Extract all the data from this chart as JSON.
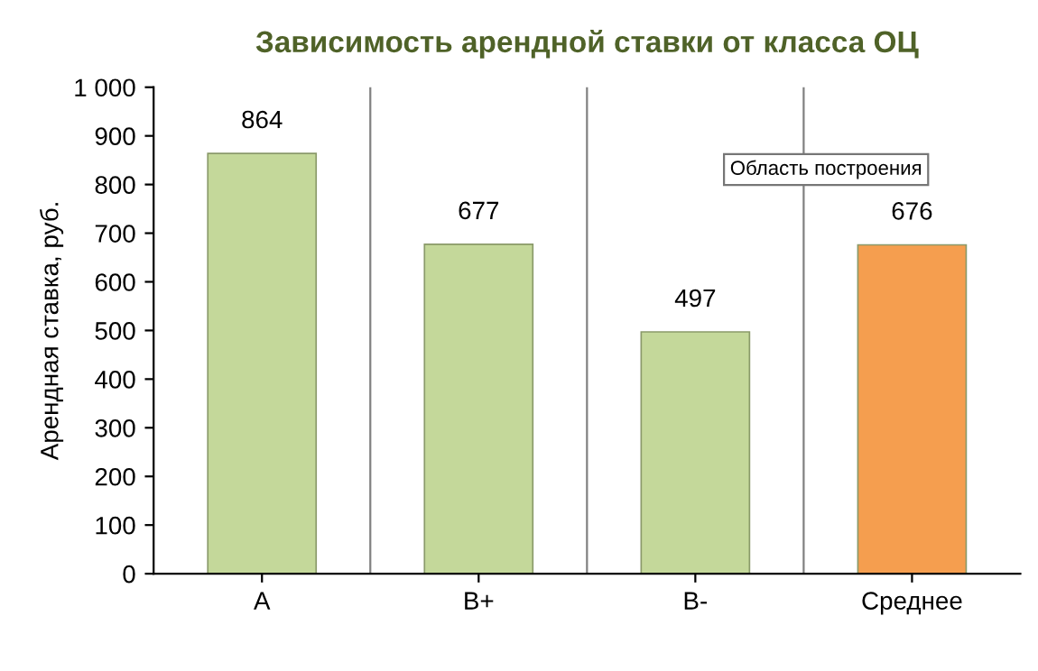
{
  "chart_data": {
    "type": "bar",
    "title": "Зависимость арендной ставки от класса ОЦ",
    "ylabel": "Арендная ставка, руб.",
    "categories": [
      "A",
      "B+",
      "B-",
      "Среднее"
    ],
    "values": [
      864,
      677,
      497,
      676
    ],
    "colors": [
      "#c4d89a",
      "#c4d89a",
      "#c4d89a",
      "#f59e4f"
    ],
    "data_labels": true,
    "ylim": [
      0,
      1000
    ],
    "yticks": [
      0,
      100,
      200,
      300,
      400,
      500,
      600,
      700,
      800,
      900,
      {
        "value": 1000,
        "label": "1 000"
      }
    ],
    "grid": "x",
    "annotations": [
      "Область построения"
    ]
  }
}
